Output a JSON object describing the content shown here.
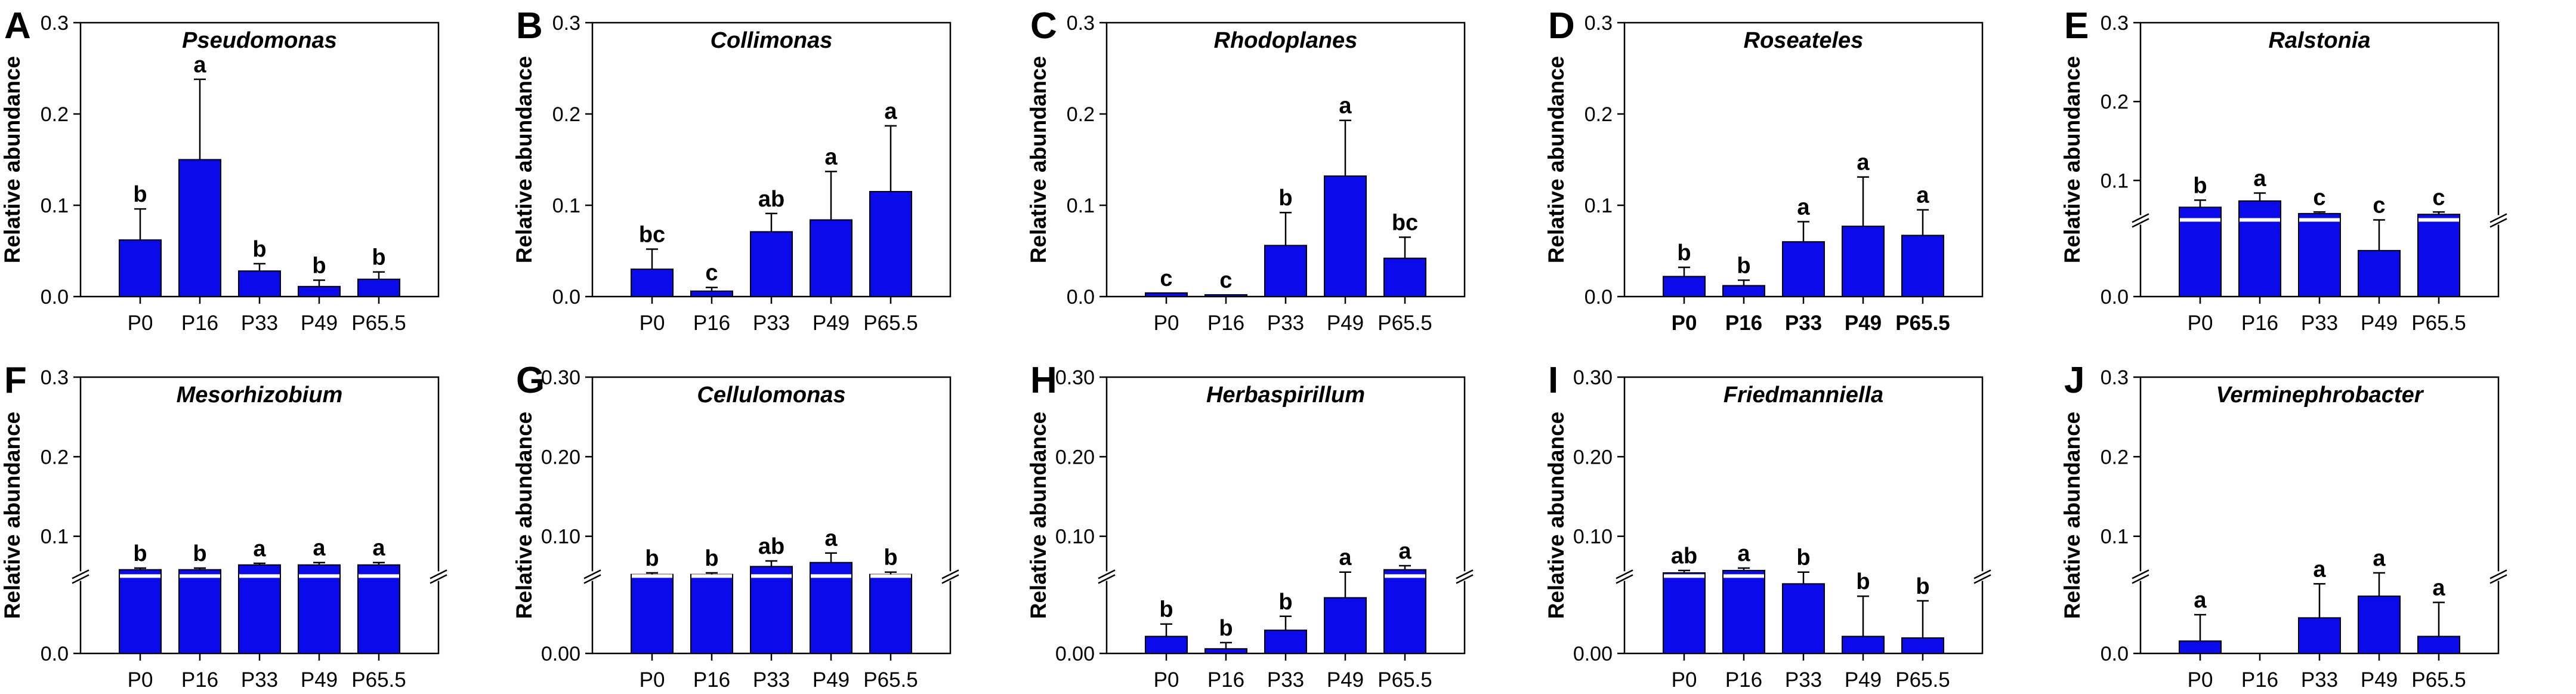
{
  "figure_caption": "",
  "chart_data": [
    {
      "panel": "A",
      "type": "bar",
      "title": "Pseudomonas",
      "ylabel": "Relative abundance",
      "ytick_labels": [
        "0.0",
        "0.1",
        "0.2",
        "0.3"
      ],
      "ytick_values": [
        0,
        0.1,
        0.2,
        0.3
      ],
      "ylim": [
        0,
        0.3
      ],
      "axis_break": false,
      "categories": [
        "P0",
        "P16",
        "P33",
        "P49",
        "P65.5"
      ],
      "values": [
        0.062,
        0.15,
        0.028,
        0.011,
        0.019
      ],
      "errors": [
        0.034,
        0.088,
        0.008,
        0.007,
        0.008
      ],
      "letters": [
        "b",
        "a",
        "b",
        "b",
        "b"
      ],
      "bold_categories": false
    },
    {
      "panel": "B",
      "type": "bar",
      "title": "Collimonas",
      "ylabel": "Relative abundance",
      "ytick_labels": [
        "0.0",
        "0.1",
        "0.2",
        "0.3"
      ],
      "ytick_values": [
        0,
        0.1,
        0.2,
        0.3
      ],
      "ylim": [
        0,
        0.3
      ],
      "axis_break": false,
      "categories": [
        "P0",
        "P16",
        "P33",
        "P49",
        "P65.5"
      ],
      "values": [
        0.03,
        0.006,
        0.071,
        0.084,
        0.115
      ],
      "errors": [
        0.022,
        0.004,
        0.02,
        0.053,
        0.072
      ],
      "letters": [
        "bc",
        "c",
        "ab",
        "a",
        "a"
      ],
      "bold_categories": false
    },
    {
      "panel": "C",
      "type": "bar",
      "title": "Rhodoplanes",
      "ylabel": "Relative abundance",
      "ytick_labels": [
        "0.0",
        "0.1",
        "0.2",
        "0.3"
      ],
      "ytick_values": [
        0,
        0.1,
        0.2,
        0.3
      ],
      "ylim": [
        0,
        0.3
      ],
      "axis_break": false,
      "categories": [
        "P0",
        "P16",
        "P33",
        "P49",
        "P65.5"
      ],
      "values": [
        0.004,
        0.002,
        0.056,
        0.132,
        0.042
      ],
      "errors": [
        0.0,
        0.0,
        0.036,
        0.061,
        0.023
      ],
      "letters": [
        "c",
        "c",
        "b",
        "a",
        "bc"
      ],
      "bold_categories": false
    },
    {
      "panel": "D",
      "type": "bar",
      "title": "Roseateles",
      "ylabel": "Relative abundance",
      "ytick_labels": [
        "0.0",
        "0.1",
        "0.2",
        "0.3"
      ],
      "ytick_values": [
        0,
        0.1,
        0.2,
        0.3
      ],
      "ylim": [
        0,
        0.3
      ],
      "axis_break": false,
      "categories": [
        "P0",
        "P16",
        "P33",
        "P49",
        "P65.5"
      ],
      "values": [
        0.022,
        0.012,
        0.06,
        0.077,
        0.067
      ],
      "errors": [
        0.01,
        0.006,
        0.022,
        0.054,
        0.028
      ],
      "letters": [
        "b",
        "b",
        "a",
        "a",
        "a"
      ],
      "bold_categories": true
    },
    {
      "panel": "E",
      "type": "bar",
      "title": "Ralstonia",
      "ylabel": "Relative abundance",
      "ytick_labels": [
        "0.0",
        "0.1",
        "0.2",
        "0.3"
      ],
      "ytick_values": [
        0,
        0.1,
        0.2,
        0.3
      ],
      "ylim": [
        0,
        0.3
      ],
      "axis_break": true,
      "categories": [
        "P0",
        "P16",
        "P33",
        "P49",
        "P65.5"
      ],
      "values": [
        0.066,
        0.074,
        0.058,
        0.03,
        0.057
      ],
      "errors": [
        0.009,
        0.01,
        0.002,
        0.02,
        0.003
      ],
      "letters": [
        "b",
        "a",
        "c",
        "c",
        "c"
      ],
      "bold_categories": false
    },
    {
      "panel": "F",
      "type": "bar",
      "title": "Mesorhizobium",
      "ylabel": "Relative abundance",
      "ytick_labels": [
        "0.0",
        "0.1",
        "0.2",
        "0.3"
      ],
      "ytick_values": [
        0,
        0.1,
        0.2,
        0.3
      ],
      "ylim": [
        0,
        0.3
      ],
      "axis_break": true,
      "categories": [
        "P0",
        "P16",
        "P33",
        "P49",
        "P65.5"
      ],
      "values": [
        0.058,
        0.058,
        0.064,
        0.064,
        0.064
      ],
      "errors": [
        0.002,
        0.002,
        0.002,
        0.003,
        0.003
      ],
      "letters": [
        "b",
        "b",
        "a",
        "a",
        "a"
      ],
      "bold_categories": false
    },
    {
      "panel": "G",
      "type": "bar",
      "title": "Cellulomonas",
      "ylabel": "Relative abundance",
      "ytick_labels": [
        "0.00",
        "0.10",
        "0.20",
        "0.30"
      ],
      "ytick_values": [
        0,
        0.1,
        0.2,
        0.3
      ],
      "ylim": [
        0,
        0.3
      ],
      "axis_break": true,
      "categories": [
        "P0",
        "P16",
        "P33",
        "P49",
        "P65.5"
      ],
      "values": [
        0.052,
        0.052,
        0.062,
        0.067,
        0.052
      ],
      "errors": [
        0.002,
        0.002,
        0.007,
        0.012,
        0.003
      ],
      "letters": [
        "b",
        "b",
        "ab",
        "a",
        "b"
      ],
      "bold_categories": false
    },
    {
      "panel": "H",
      "type": "bar",
      "title": "Herbaspirillum",
      "ylabel": "Relative abundance",
      "ytick_labels": [
        "0.00",
        "0.10",
        "0.20",
        "0.30"
      ],
      "ytick_values": [
        0,
        0.1,
        0.2,
        0.3
      ],
      "ylim": [
        0,
        0.3
      ],
      "axis_break": true,
      "categories": [
        "P0",
        "P16",
        "P33",
        "P49",
        "P65.5"
      ],
      "values": [
        0.011,
        0.003,
        0.015,
        0.036,
        0.058
      ],
      "errors": [
        0.008,
        0.004,
        0.009,
        0.019,
        0.005
      ],
      "letters": [
        "b",
        "b",
        "b",
        "a",
        "a"
      ],
      "bold_categories": false
    },
    {
      "panel": "I",
      "type": "bar",
      "title": "Friedmanniella",
      "ylabel": "Relative abundance",
      "ytick_labels": [
        "0.00",
        "0.10",
        "0.20",
        "0.30"
      ],
      "ytick_values": [
        0,
        0.1,
        0.2,
        0.3
      ],
      "ylim": [
        0,
        0.3
      ],
      "axis_break": true,
      "categories": [
        "P0",
        "P16",
        "P33",
        "P49",
        "P65.5"
      ],
      "values": [
        0.054,
        0.057,
        0.045,
        0.011,
        0.01
      ],
      "errors": [
        0.003,
        0.003,
        0.01,
        0.026,
        0.024
      ],
      "letters": [
        "ab",
        "a",
        "b",
        "b",
        "b"
      ],
      "bold_categories": false
    },
    {
      "panel": "J",
      "type": "bar",
      "title": "Verminephrobacter",
      "ylabel": "Relative abundance",
      "ytick_labels": [
        "0.0",
        "0.1",
        "0.2",
        "0.3"
      ],
      "ytick_values": [
        0,
        0.1,
        0.2,
        0.3
      ],
      "ylim": [
        0,
        0.3
      ],
      "axis_break": true,
      "categories": [
        "P0",
        "P16",
        "P33",
        "P49",
        "P65.5"
      ],
      "values": [
        0.008,
        0.0,
        0.023,
        0.037,
        0.011
      ],
      "errors": [
        0.017,
        0.0,
        0.022,
        0.017,
        0.022
      ],
      "letters": [
        "a",
        "",
        "a",
        "a",
        "a"
      ],
      "bold_categories": false
    }
  ],
  "colors": {
    "bar_fill": "#0a0aea",
    "bar_stroke": "#000000",
    "axis": "#000000",
    "text": "#000000",
    "background": "#ffffff"
  }
}
